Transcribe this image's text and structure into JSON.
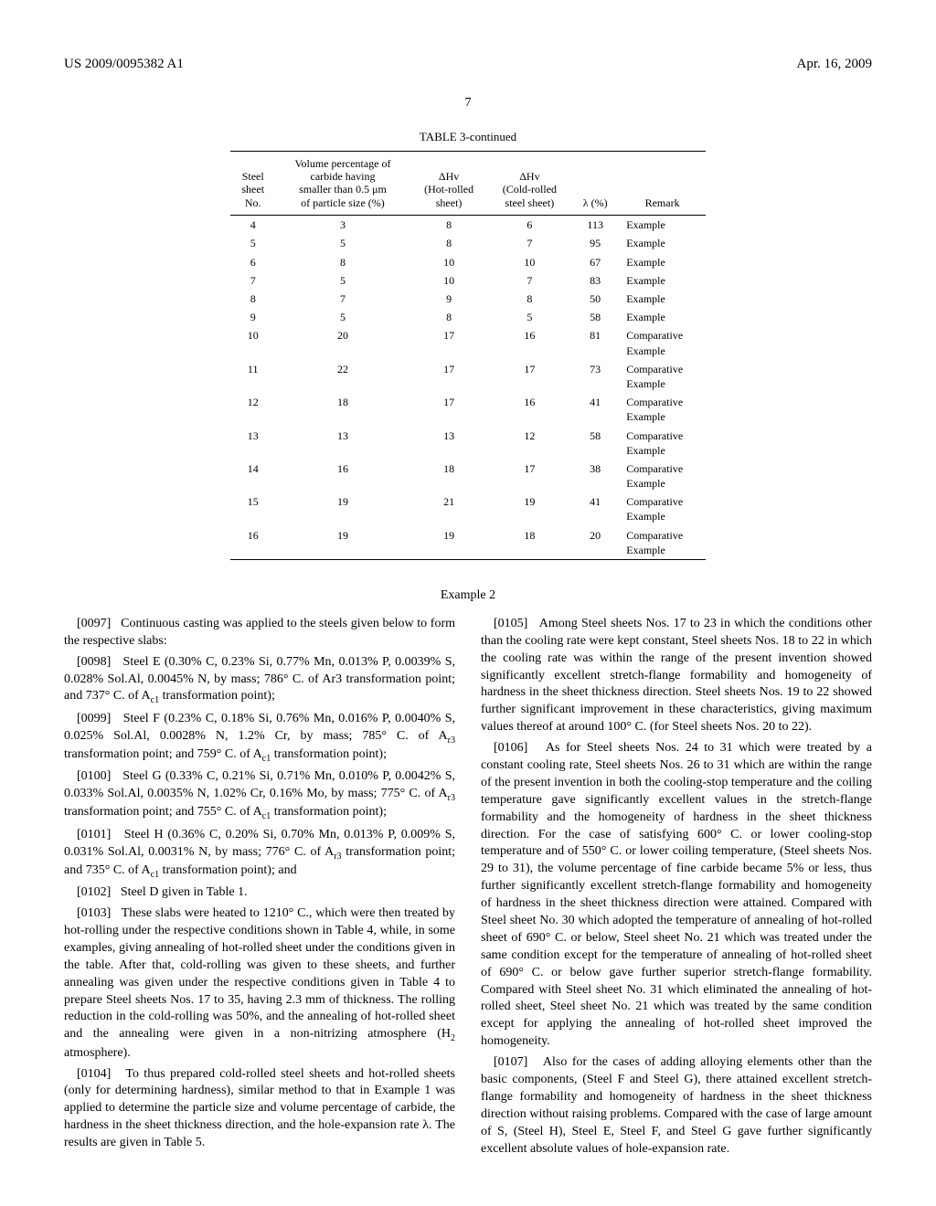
{
  "header": {
    "doc_number": "US 2009/0095382 A1",
    "pub_date": "Apr. 16, 2009",
    "page_number": "7"
  },
  "table3": {
    "caption": "TABLE 3-continued",
    "columns": {
      "col1": "Steel\nsheet\nNo.",
      "col2": "Volume percentage of\ncarbide having\nsmaller than 0.5 μm\nof particle size (%)",
      "col3": "ΔHv\n(Hot-rolled\nsheet)",
      "col4": "ΔHv\n(Cold-rolled\nsteel sheet)",
      "col5": "λ (%)",
      "col6": "Remark"
    },
    "rows": [
      {
        "no": "4",
        "vp": "3",
        "hr": "8",
        "cr": "6",
        "lam": "113",
        "rem": "Example"
      },
      {
        "no": "5",
        "vp": "5",
        "hr": "8",
        "cr": "7",
        "lam": "95",
        "rem": "Example"
      },
      {
        "no": "6",
        "vp": "8",
        "hr": "10",
        "cr": "10",
        "lam": "67",
        "rem": "Example"
      },
      {
        "no": "7",
        "vp": "5",
        "hr": "10",
        "cr": "7",
        "lam": "83",
        "rem": "Example"
      },
      {
        "no": "8",
        "vp": "7",
        "hr": "9",
        "cr": "8",
        "lam": "50",
        "rem": "Example"
      },
      {
        "no": "9",
        "vp": "5",
        "hr": "8",
        "cr": "5",
        "lam": "58",
        "rem": "Example"
      },
      {
        "no": "10",
        "vp": "20",
        "hr": "17",
        "cr": "16",
        "lam": "81",
        "rem": "Comparative\nExample"
      },
      {
        "no": "11",
        "vp": "22",
        "hr": "17",
        "cr": "17",
        "lam": "73",
        "rem": "Comparative\nExample"
      },
      {
        "no": "12",
        "vp": "18",
        "hr": "17",
        "cr": "16",
        "lam": "41",
        "rem": "Comparative\nExample"
      },
      {
        "no": "13",
        "vp": "13",
        "hr": "13",
        "cr": "12",
        "lam": "58",
        "rem": "Comparative\nExample"
      },
      {
        "no": "14",
        "vp": "16",
        "hr": "18",
        "cr": "17",
        "lam": "38",
        "rem": "Comparative\nExample"
      },
      {
        "no": "15",
        "vp": "19",
        "hr": "21",
        "cr": "19",
        "lam": "41",
        "rem": "Comparative\nExample"
      },
      {
        "no": "16",
        "vp": "19",
        "hr": "19",
        "cr": "18",
        "lam": "20",
        "rem": "Comparative\nExample"
      }
    ]
  },
  "example_heading": "Example 2",
  "left_paragraphs": [
    {
      "num": "[0097]",
      "text": "Continuous casting was applied to the steels given below to form the respective slabs:"
    },
    {
      "num": "[0098]",
      "text": "Steel E (0.30% C, 0.23% Si, 0.77% Mn, 0.013% P, 0.0039% S, 0.028% Sol.Al, 0.0045% N, by mass; 786° C. of Ar3 transformation point; and 737° C. of A",
      "sub": "c1",
      "tail": " transformation point);"
    },
    {
      "num": "[0099]",
      "text": "Steel F (0.23% C, 0.18% Si, 0.76% Mn, 0.016% P, 0.0040% S, 0.025% Sol.Al, 0.0028% N, 1.2% Cr, by mass; 785° C. of A",
      "sub": "r3",
      "tail": " transformation point; and 759° C. of A",
      "sub2": "c1",
      "tail2": " transformation point);"
    },
    {
      "num": "[0100]",
      "text": "Steel G (0.33% C, 0.21% Si, 0.71% Mn, 0.010% P, 0.0042% S, 0.033% Sol.Al, 0.0035% N, 1.02% Cr, 0.16% Mo, by mass; 775° C. of A",
      "sub": "r3",
      "tail": " transformation point; and 755° C. of A",
      "sub2": "c1",
      "tail2": " transformation point);"
    },
    {
      "num": "[0101]",
      "text": "Steel H (0.36% C, 0.20% Si, 0.70% Mn, 0.013% P, 0.009% S, 0.031% Sol.Al, 0.0031% N, by mass; 776° C. of A",
      "sub": "r3",
      "tail": " transformation point; and 735° C. of A",
      "sub2": "c1",
      "tail2": " transformation point); and"
    },
    {
      "num": "[0102]",
      "text": "Steel D given in Table 1."
    },
    {
      "num": "[0103]",
      "text": "These slabs were heated to 1210° C., which were then treated by hot-rolling under the respective conditions shown in Table 4, while, in some examples, giving annealing of hot-rolled sheet under the conditions given in the table. After that, cold-rolling was given to these sheets, and further annealing was given under the respective conditions given in Table 4 to prepare Steel sheets Nos. 17 to 35, having 2.3 mm of thickness. The rolling reduction in the cold-rolling was 50%, and the annealing of hot-rolled sheet and the annealing were given in a non-nitrizing atmosphere (H",
      "sub": "2",
      "tail": " atmosphere)."
    },
    {
      "num": "[0104]",
      "text": "To thus prepared cold-rolled steel sheets and hot-rolled sheets (only for determining hardness), similar method to that in Example 1 was applied to determine the particle size and volume percentage of carbide, the hardness in the sheet thickness direction, and the hole-expansion rate λ. The results are given in Table 5."
    }
  ],
  "right_paragraphs": [
    {
      "num": "[0105]",
      "text": "Among Steel sheets Nos. 17 to 23 in which the conditions other than the cooling rate were kept constant, Steel sheets Nos. 18 to 22 in which the cooling rate was within the range of the present invention showed significantly excellent stretch-flange formability and homogeneity of hardness in the sheet thickness direction. Steel sheets Nos. 19 to 22 showed further significant improvement in these characteristics, giving maximum values thereof at around 100° C. (for Steel sheets Nos. 20 to 22)."
    },
    {
      "num": "[0106]",
      "text": "As for Steel sheets Nos. 24 to 31 which were treated by a constant cooling rate, Steel sheets Nos. 26 to 31 which are within the range of the present invention in both the cooling-stop temperature and the coiling temperature gave significantly excellent values in the stretch-flange formability and the homogeneity of hardness in the sheet thickness direction. For the case of satisfying 600° C. or lower cooling-stop temperature and of 550° C. or lower coiling temperature, (Steel sheets Nos. 29 to 31), the volume percentage of fine carbide became 5% or less, thus further significantly excellent stretch-flange formability and homogeneity of hardness in the sheet thickness direction were attained. Compared with Steel sheet No. 30 which adopted the temperature of annealing of hot-rolled sheet of 690° C. or below, Steel sheet No. 21 which was treated under the same condition except for the temperature of annealing of hot-rolled sheet of 690° C. or below gave further superior stretch-flange formability. Compared with Steel sheet No. 31 which eliminated the annealing of hot-rolled sheet, Steel sheet No. 21 which was treated by the same condition except for applying the annealing of hot-rolled sheet improved the homogeneity."
    },
    {
      "num": "[0107]",
      "text": "Also for the cases of adding alloying elements other than the basic components, (Steel F and Steel G), there attained excellent stretch-flange formability and homogeneity of hardness in the sheet thickness direction without raising problems. Compared with the case of large amount of S, (Steel H), Steel E, Steel F, and Steel G gave further significantly excellent absolute values of hole-expansion rate."
    }
  ]
}
